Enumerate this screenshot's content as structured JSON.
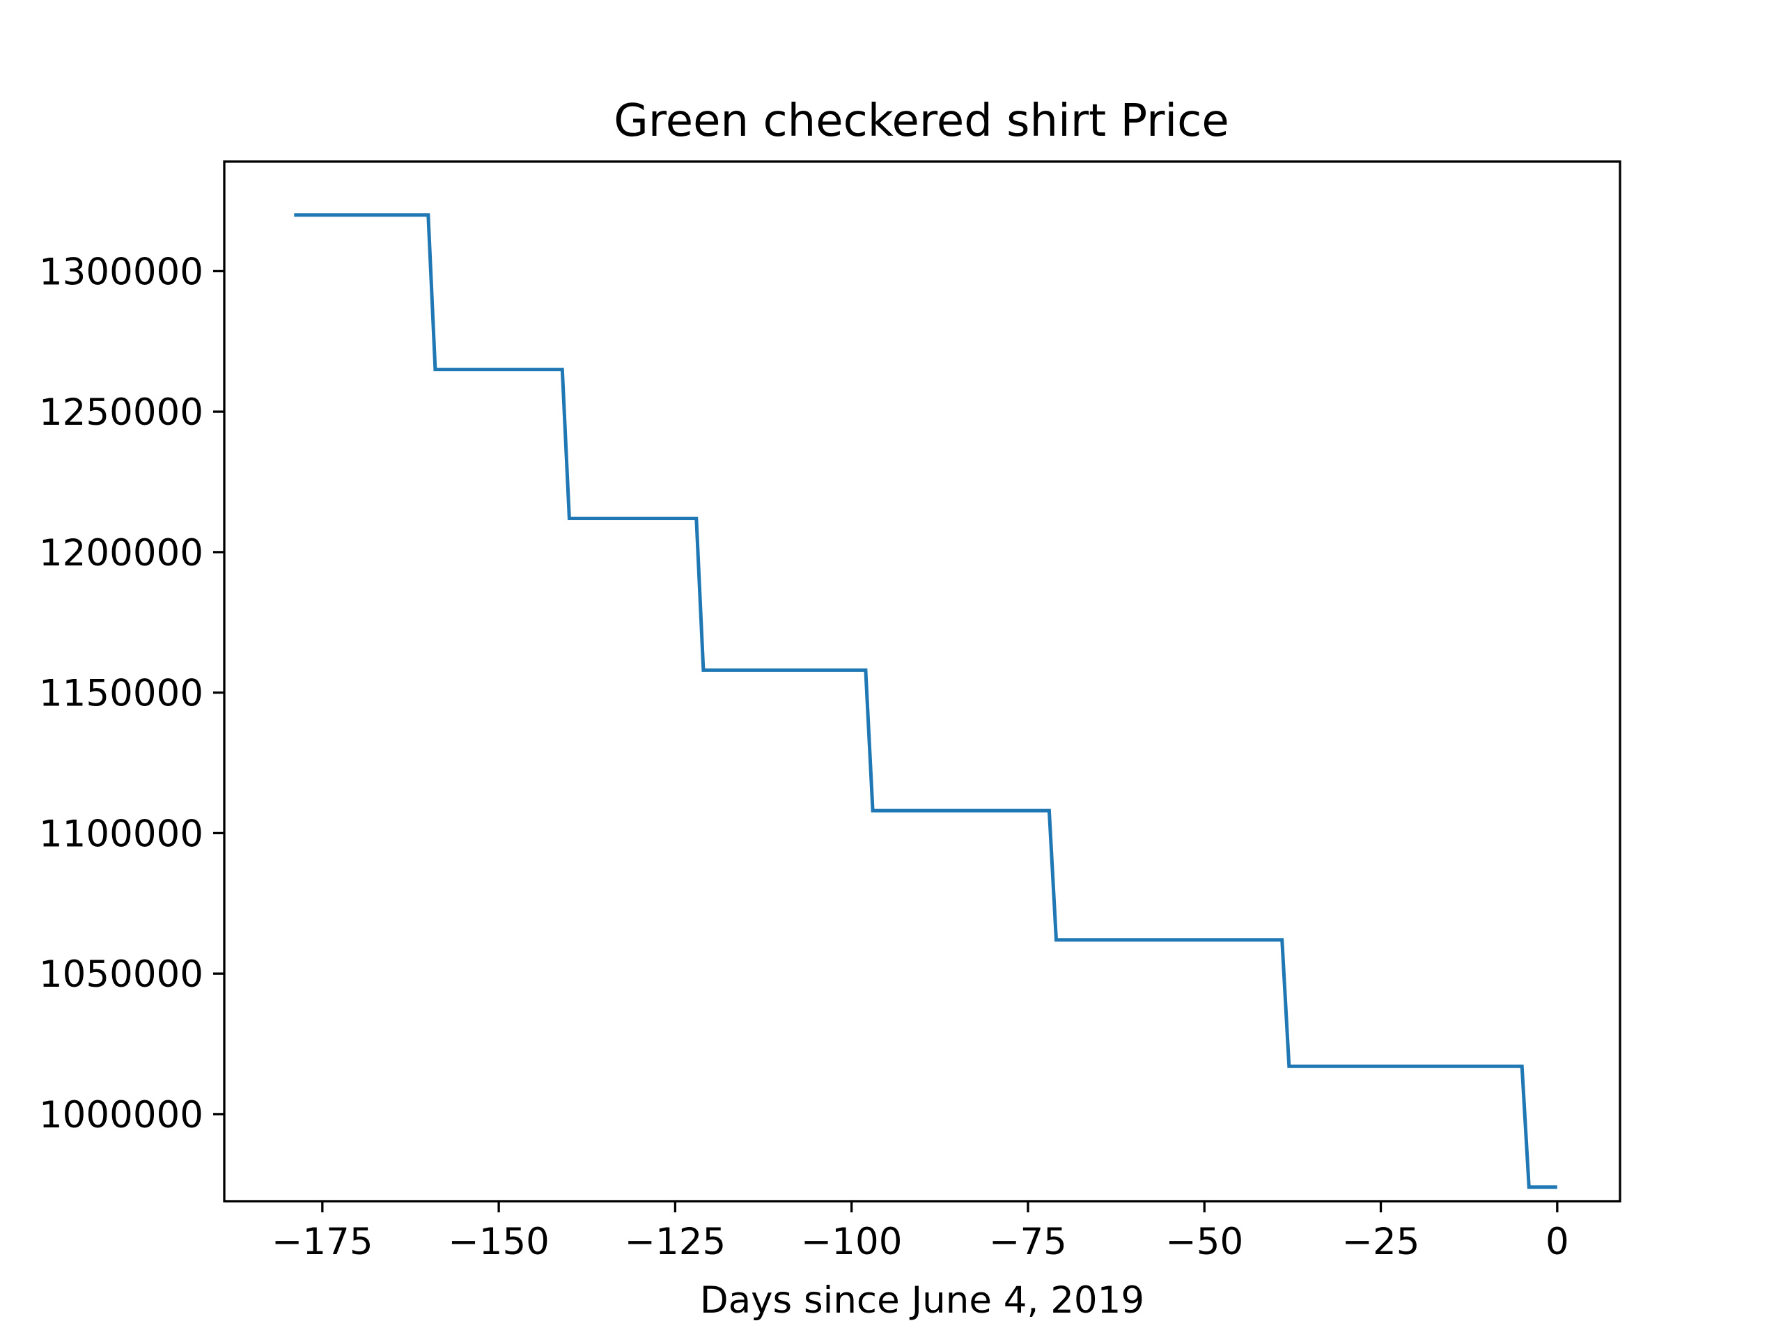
{
  "chart_data": {
    "type": "line",
    "title": "Green checkered shirt Price",
    "xlabel": "Days since June 4, 2019",
    "ylabel": "",
    "xlim": [
      -188.9,
      8.9
    ],
    "ylim": [
      969000,
      1339000
    ],
    "grid": false,
    "legend": "none",
    "xticks": [
      -175,
      -150,
      -125,
      -100,
      -75,
      -50,
      -25,
      0
    ],
    "xtick_labels": [
      "−175",
      "−150",
      "−125",
      "−100",
      "−75",
      "−50",
      "−25",
      "0"
    ],
    "yticks": [
      1000000,
      1050000,
      1100000,
      1150000,
      1200000,
      1250000,
      1300000
    ],
    "ytick_labels": [
      "1000000",
      "1050000",
      "1100000",
      "1150000",
      "1200000",
      "1250000",
      "1300000"
    ],
    "series": [
      {
        "color": "#1f77b4",
        "x": [
          -179,
          -160,
          -159,
          -141,
          -140,
          -122,
          -121,
          -98,
          -97,
          -72,
          -71,
          -39,
          -38,
          -5,
          -4,
          0
        ],
        "y": [
          1320000,
          1320000,
          1265000,
          1265000,
          1212000,
          1212000,
          1158000,
          1158000,
          1108000,
          1108000,
          1062000,
          1062000,
          1017000,
          1017000,
          974000,
          974000
        ]
      }
    ]
  }
}
